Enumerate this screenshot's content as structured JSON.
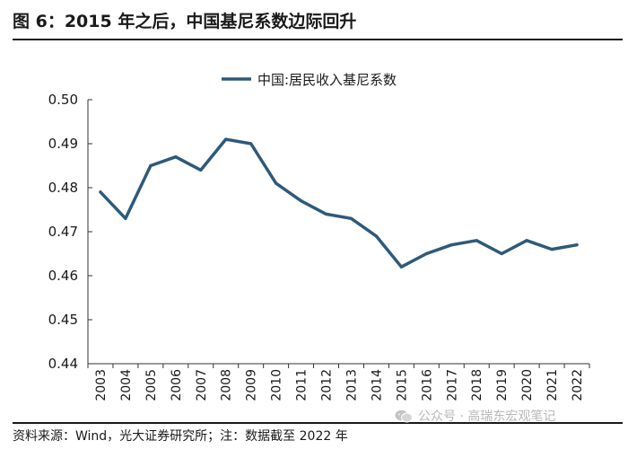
{
  "figure": {
    "title": "图 6：2015 年之后，中国基尼系数边际回升",
    "source": "资料来源：Wind，光大证券研究所；注：数据截至 2022 年",
    "watermark": "公众号 · 高瑞东宏观笔记",
    "watermark_icon": "wechat-icon"
  },
  "chart_data": {
    "type": "line",
    "title": "",
    "xlabel": "",
    "ylabel": "",
    "x": [
      "2003",
      "2004",
      "2005",
      "2006",
      "2007",
      "2008",
      "2009",
      "2010",
      "2011",
      "2012",
      "2013",
      "2014",
      "2015",
      "2016",
      "2017",
      "2018",
      "2019",
      "2020",
      "2021",
      "2022"
    ],
    "series": [
      {
        "name": "中国:居民收入基尼系数",
        "color": "#2e5a7a",
        "values": [
          0.479,
          0.473,
          0.485,
          0.487,
          0.484,
          0.491,
          0.49,
          0.481,
          0.477,
          0.474,
          0.473,
          0.469,
          0.462,
          0.465,
          0.467,
          0.468,
          0.465,
          0.468,
          0.466,
          0.467
        ]
      }
    ],
    "ylim": [
      0.44,
      0.5
    ],
    "yticks": [
      "0.44",
      "0.45",
      "0.46",
      "0.47",
      "0.48",
      "0.49",
      "0.50"
    ],
    "grid": false,
    "legend": "top-center"
  }
}
